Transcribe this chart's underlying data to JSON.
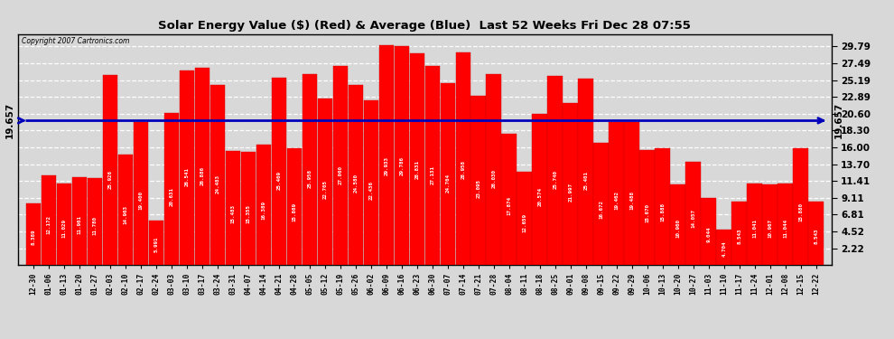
{
  "title": "Solar Energy Value ($) (Red) & Average (Blue)  Last 52 Weeks Fri Dec 28 07:55",
  "copyright": "Copyright 2007 Cartronics.com",
  "average_line": 19.657,
  "average_label": "19.657",
  "bar_color": "#ff0000",
  "avg_line_color": "#0000bb",
  "background_color": "#d8d8d8",
  "grid_color": "#ffffff",
  "yticks": [
    2.22,
    4.52,
    6.81,
    9.11,
    11.41,
    13.7,
    16.0,
    18.3,
    20.6,
    22.89,
    25.19,
    27.49,
    29.79
  ],
  "ylim": [
    0,
    31.5
  ],
  "categories": [
    "12-30",
    "01-06",
    "01-13",
    "01-20",
    "01-27",
    "02-03",
    "02-10",
    "02-17",
    "02-24",
    "03-03",
    "03-10",
    "03-17",
    "03-24",
    "03-31",
    "04-07",
    "04-14",
    "04-21",
    "04-28",
    "05-05",
    "05-12",
    "05-19",
    "05-26",
    "06-02",
    "06-09",
    "06-16",
    "06-23",
    "06-30",
    "07-07",
    "07-14",
    "07-21",
    "07-28",
    "08-04",
    "08-11",
    "08-18",
    "08-25",
    "09-01",
    "09-08",
    "09-15",
    "09-22",
    "09-29",
    "10-06",
    "10-13",
    "10-20",
    "10-27",
    "11-03",
    "11-10",
    "11-17",
    "11-24",
    "12-01",
    "12-08",
    "12-15",
    "12-22"
  ],
  "values": [
    8.389,
    12.172,
    11.029,
    11.961,
    11.78,
    25.926,
    14.963,
    19.4,
    5.991,
    20.631,
    26.541,
    26.886,
    24.483,
    15.483,
    15.355,
    16.389,
    25.469,
    15.869,
    25.958,
    22.705,
    27.06,
    24.58,
    22.436,
    29.933,
    29.786,
    28.831,
    27.131,
    24.764,
    28.958,
    23.095,
    26.03,
    17.874,
    12.659,
    20.574,
    25.74,
    21.997,
    25.401,
    16.672,
    19.462,
    19.488,
    15.67,
    15.888,
    10.96,
    14.057,
    9.044,
    4.704,
    8.543,
    11.041,
    10.967,
    11.044,
    15.88,
    8.543
  ]
}
